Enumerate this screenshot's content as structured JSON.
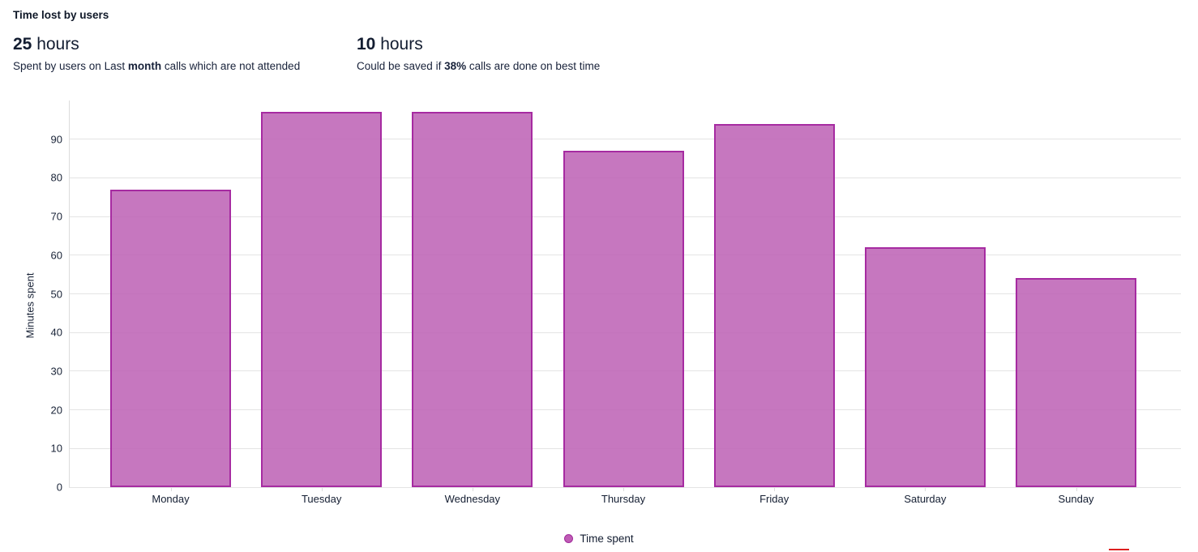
{
  "header": {
    "title": "Time lost by users",
    "stats": [
      {
        "value": "25",
        "unit": " hours",
        "desc": [
          {
            "text": "Spent by users on Last ",
            "bold": false
          },
          {
            "text": "month",
            "bold": true
          },
          {
            "text": " calls which are not attended",
            "bold": false
          }
        ]
      },
      {
        "value": "10",
        "unit": " hours",
        "desc": [
          {
            "text": "Could be saved if ",
            "bold": false
          },
          {
            "text": "38%",
            "bold": true
          },
          {
            "text": " calls are done on best time",
            "bold": false
          }
        ]
      }
    ]
  },
  "chart_data": {
    "type": "bar",
    "title": "Time lost by users",
    "categories": [
      "Monday",
      "Tuesday",
      "Wednesday",
      "Thursday",
      "Friday",
      "Saturday",
      "Sunday"
    ],
    "series": [
      {
        "name": "Time spent",
        "values": [
          77,
          97,
          97,
          87,
          94,
          62,
          54
        ]
      }
    ],
    "xlabel": "",
    "ylabel": "Minutes spent",
    "ylim": [
      0,
      100
    ],
    "yticks": [
      0,
      10,
      20,
      30,
      40,
      50,
      60,
      70,
      80,
      90
    ],
    "grid": true,
    "legend_position": "bottom",
    "colors": {
      "bar_fill": "#c777bf",
      "bar_border": "#a62ba1",
      "gridline": "#e4e4e4",
      "axis": "#dcdcdc",
      "text": "#131d31"
    }
  },
  "legend": {
    "items": [
      {
        "label": "Time spent",
        "color": "#bf5cb5"
      }
    ]
  },
  "misc": {
    "red_marker_color": "#dd1f1f"
  }
}
